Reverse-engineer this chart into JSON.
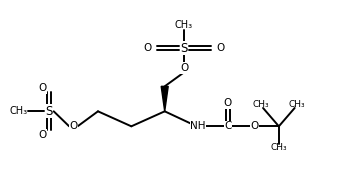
{
  "bg_color": "#ffffff",
  "line_color": "#000000",
  "line_width": 1.4,
  "font_size": 7.5,
  "figsize": [
    3.54,
    1.86
  ],
  "dpi": 100,
  "xlim": [
    0,
    10
  ],
  "ylim": [
    0,
    5.5
  ]
}
